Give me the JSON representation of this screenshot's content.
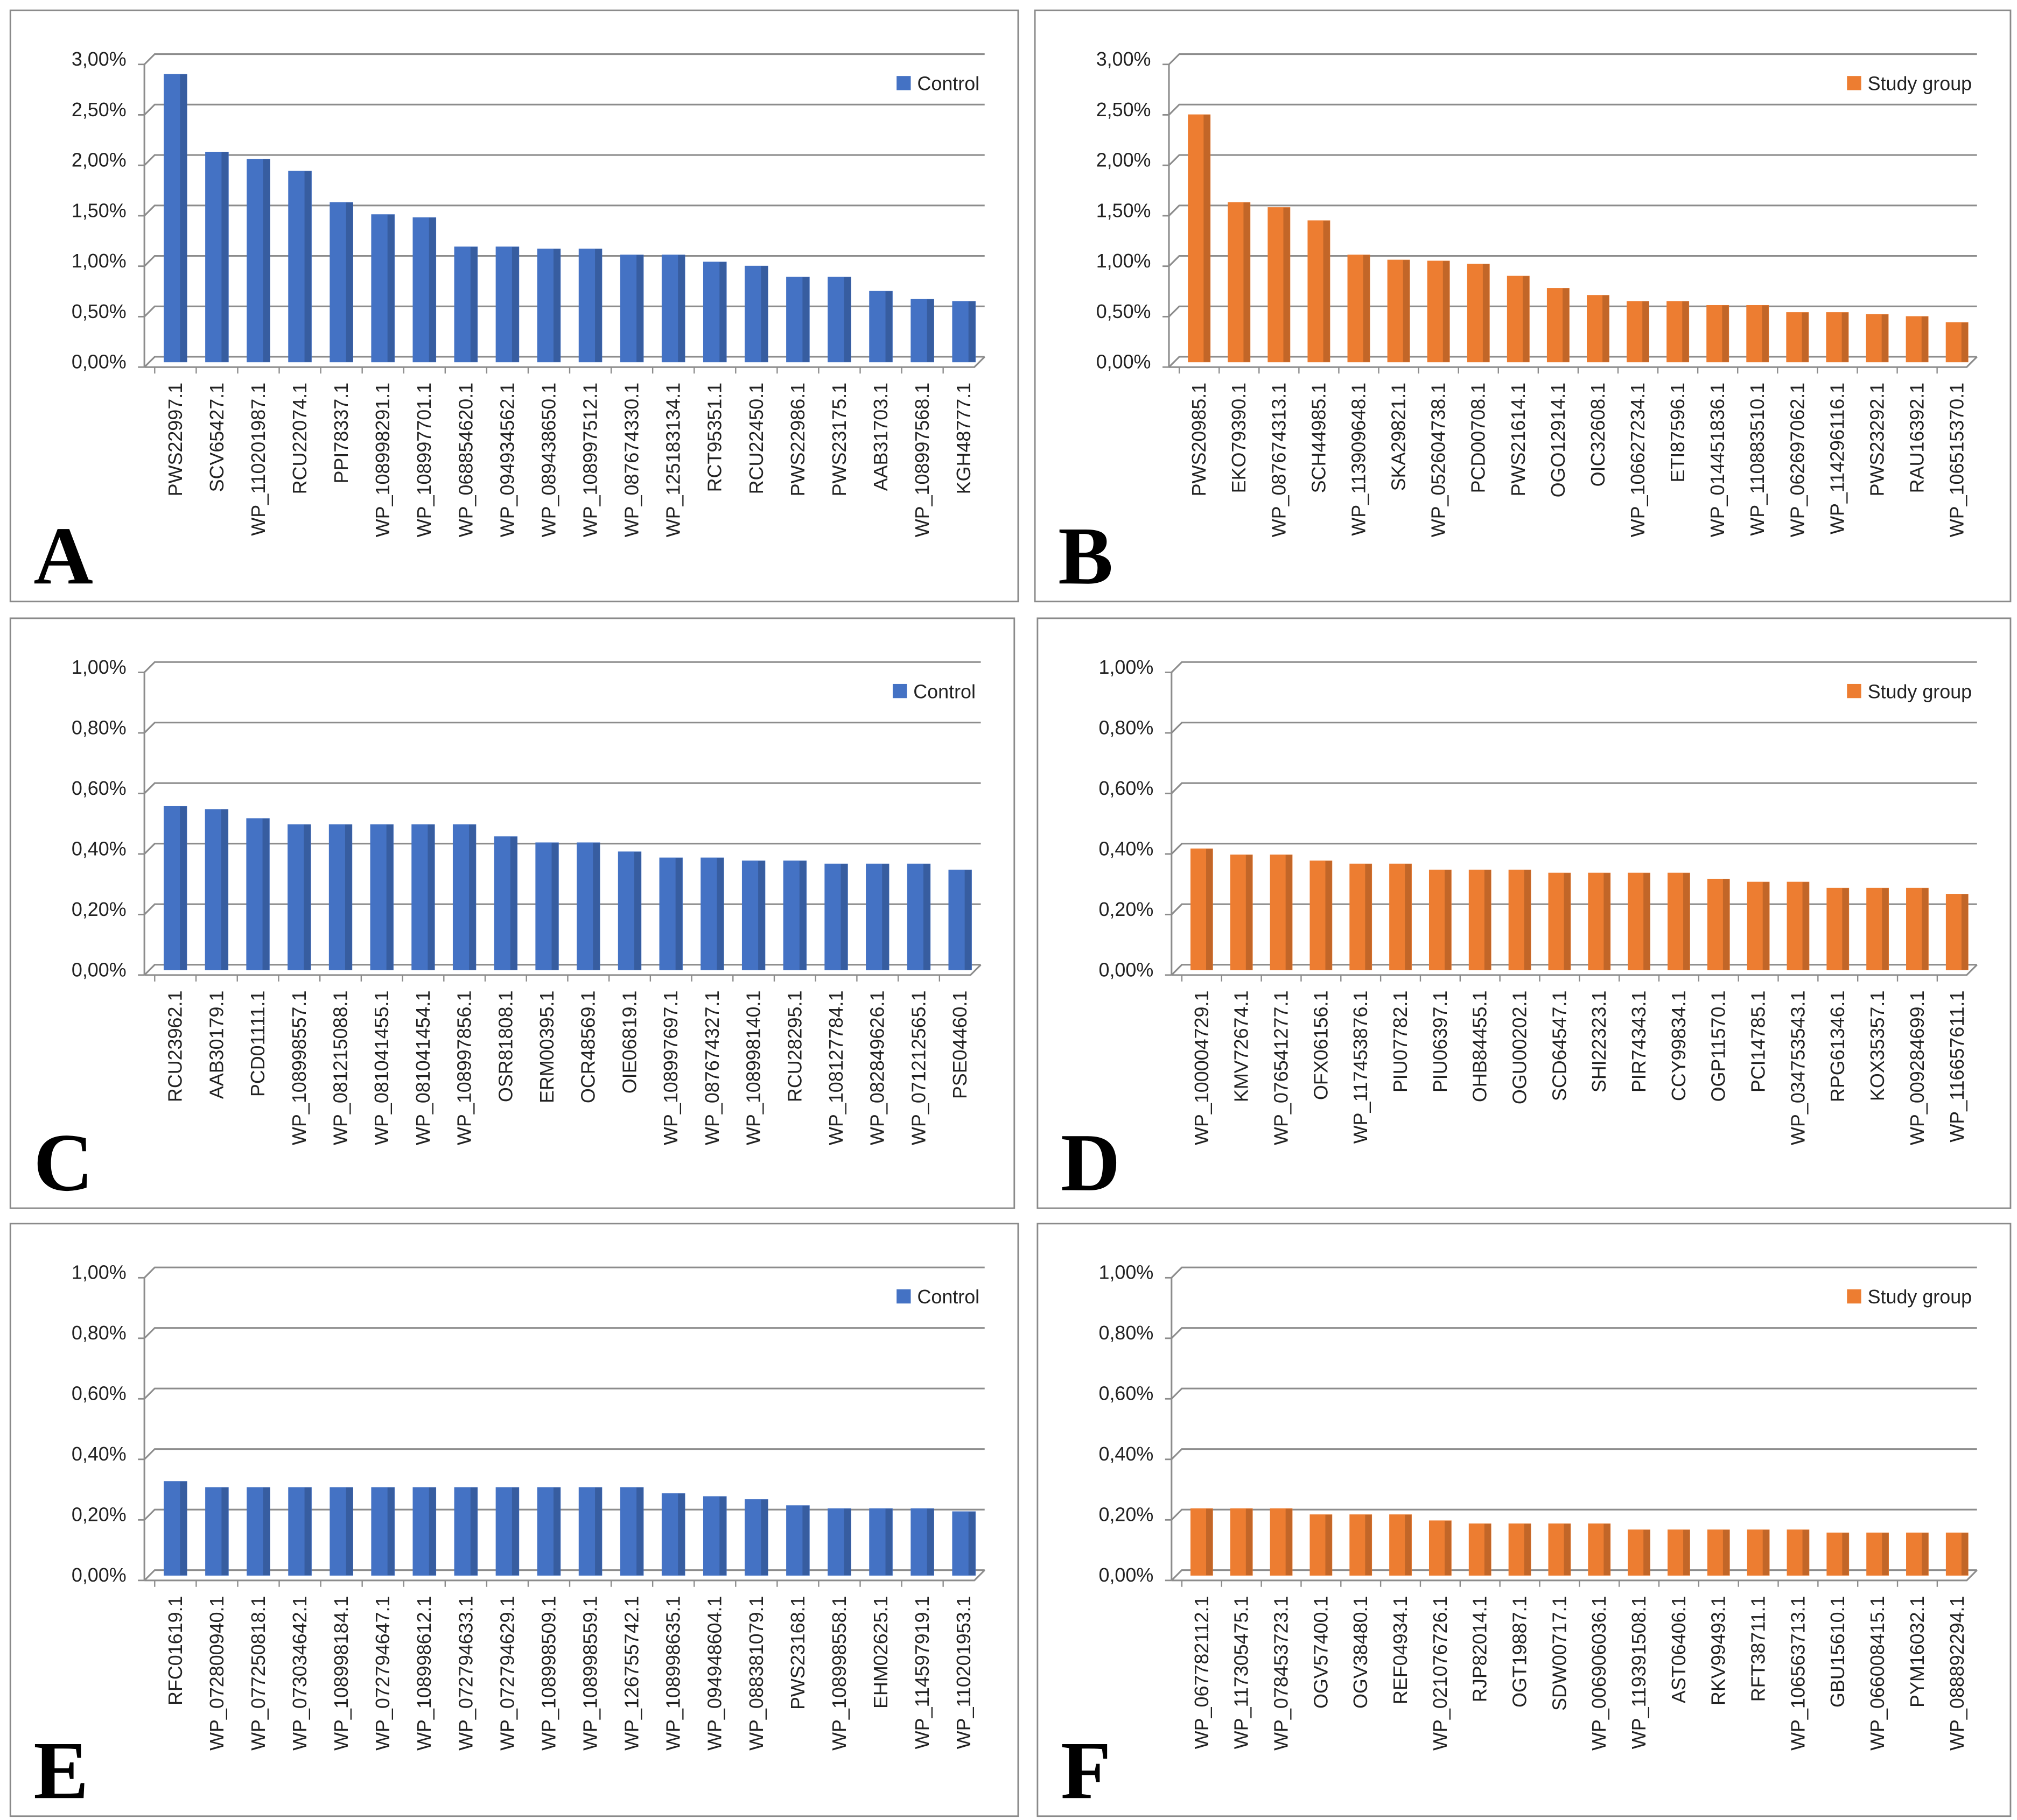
{
  "chart_data": [
    {
      "type": "bar",
      "label": "A",
      "legend": "upper right",
      "grid": true,
      "categories": [
        "PWS22997.1",
        "SCV65427.1",
        "WP_110201987.1",
        "RCU22074.1",
        "PPI78337.1",
        "WP_108998291.1",
        "WP_108997701.1",
        "WP_068854620.1",
        "WP_094934562.1",
        "WP_089438650.1",
        "WP_108997512.1",
        "WP_087674330.1",
        "WP_125183134.1",
        "RCT95351.1",
        "RCU22450.1",
        "PWS22986.1",
        "PWS23175.1",
        "AAB31703.1",
        "WP_108997568.1",
        "KGH48777.1"
      ],
      "series": [
        {
          "name": "Control",
          "color": "#4472c4",
          "values": [
            2.85,
            2.08,
            2.01,
            1.89,
            1.58,
            1.46,
            1.43,
            1.14,
            1.14,
            1.12,
            1.12,
            1.06,
            1.06,
            0.99,
            0.95,
            0.84,
            0.84,
            0.7,
            0.62,
            0.6
          ]
        }
      ],
      "ylim": [
        0,
        3
      ],
      "yticks": [
        {
          "value": 0,
          "label": "0,00%"
        },
        {
          "value": 0.5,
          "label": "0,50%"
        },
        {
          "value": 1,
          "label": "1,00%"
        },
        {
          "value": 1.5,
          "label": "1,50%"
        },
        {
          "value": 2,
          "label": "2,00%"
        },
        {
          "value": 2.5,
          "label": "2,50%"
        },
        {
          "value": 3,
          "label": "3,00%"
        }
      ]
    },
    {
      "type": "bar",
      "label": "B",
      "legend": "upper right",
      "grid": true,
      "categories": [
        "PWS20985.1",
        "EKO79390.1",
        "WP_087674313.1",
        "SCH44985.1",
        "WP_113909648.1",
        "SKA29821.1",
        "WP_052604738.1",
        "PCD00708.1",
        "PWS21614.1",
        "OGO12914.1",
        "OIC32608.1",
        "WP_106627234.1",
        "ETI87596.1",
        "WP_014451836.1",
        "WP_110883510.1",
        "WP_062697062.1",
        "WP_114296116.1",
        "PWS23292.1",
        "RAU16392.1",
        "WP_106515370.1"
      ],
      "series": [
        {
          "name": "Study group",
          "color": "#ed7d31",
          "values": [
            2.45,
            1.58,
            1.53,
            1.4,
            1.06,
            1.01,
            1.0,
            0.97,
            0.85,
            0.73,
            0.66,
            0.6,
            0.6,
            0.56,
            0.56,
            0.49,
            0.49,
            0.47,
            0.45,
            0.39
          ]
        }
      ],
      "ylim": [
        0,
        3
      ],
      "yticks": [
        {
          "value": 0,
          "label": "0,00%"
        },
        {
          "value": 0.5,
          "label": "0,50%"
        },
        {
          "value": 1,
          "label": "1,00%"
        },
        {
          "value": 1.5,
          "label": "1,50%"
        },
        {
          "value": 2,
          "label": "2,00%"
        },
        {
          "value": 2.5,
          "label": "2,50%"
        },
        {
          "value": 3,
          "label": "3,00%"
        }
      ]
    },
    {
      "type": "bar",
      "label": "C",
      "legend": "upper right",
      "grid": true,
      "categories": [
        "RCU23962.1",
        "AAB30179.1",
        "PCD01111.1",
        "WP_108998557.1",
        "WP_081215088.1",
        "WP_081041455.1",
        "WP_081041454.1",
        "WP_108997856.1",
        "OSR81808.1",
        "ERM00395.1",
        "OCR48569.1",
        "OIE06819.1",
        "WP_108997697.1",
        "WP_087674327.1",
        "WP_108998140.1",
        "RCU28295.1",
        "WP_108127784.1",
        "WP_082849626.1",
        "WP_071212565.1",
        "PSE04460.1"
      ],
      "series": [
        {
          "name": "Control",
          "color": "#4472c4",
          "values": [
            0.54,
            0.53,
            0.5,
            0.48,
            0.48,
            0.48,
            0.48,
            0.48,
            0.44,
            0.42,
            0.42,
            0.39,
            0.37,
            0.37,
            0.36,
            0.36,
            0.35,
            0.35,
            0.35,
            0.33
          ]
        }
      ],
      "ylim": [
        0,
        1
      ],
      "yticks": [
        {
          "value": 0,
          "label": "0,00%"
        },
        {
          "value": 0.2,
          "label": "0,20%"
        },
        {
          "value": 0.4,
          "label": "0,40%"
        },
        {
          "value": 0.6,
          "label": "0,60%"
        },
        {
          "value": 0.8,
          "label": "0,80%"
        },
        {
          "value": 1,
          "label": "1,00%"
        }
      ]
    },
    {
      "type": "bar",
      "label": "D",
      "legend": "upper right",
      "grid": true,
      "categories": [
        "WP_100004729.1",
        "KMV72674.1",
        "WP_076541277.1",
        "OFX06156.1",
        "WP_117453876.1",
        "PIU07782.1",
        "PIU06397.1",
        "OHB84455.1",
        "OGU00202.1",
        "SCD64547.1",
        "SHI22323.1",
        "PIR74343.1",
        "CCY99834.1",
        "OGP11570.1",
        "PCI14785.1",
        "WP_034753543.1",
        "RPG61346.1",
        "KOX35357.1",
        "WP_009284699.1",
        "WP_116657611.1"
      ],
      "series": [
        {
          "name": "Study group",
          "color": "#ed7d31",
          "values": [
            0.4,
            0.38,
            0.38,
            0.36,
            0.35,
            0.35,
            0.33,
            0.33,
            0.33,
            0.32,
            0.32,
            0.32,
            0.32,
            0.3,
            0.29,
            0.29,
            0.27,
            0.27,
            0.27,
            0.25
          ]
        }
      ],
      "ylim": [
        0,
        1
      ],
      "yticks": [
        {
          "value": 0,
          "label": "0,00%"
        },
        {
          "value": 0.2,
          "label": "0,20%"
        },
        {
          "value": 0.4,
          "label": "0,40%"
        },
        {
          "value": 0.6,
          "label": "0,60%"
        },
        {
          "value": 0.8,
          "label": "0,80%"
        },
        {
          "value": 1,
          "label": "1,00%"
        }
      ]
    },
    {
      "type": "bar",
      "label": "E",
      "legend": "upper right",
      "grid": true,
      "categories": [
        "RFC01619.1",
        "WP_072800940.1",
        "WP_077250818.1",
        "WP_073034642.1",
        "WP_108998184.1",
        "WP_072794647.1",
        "WP_108998612.1",
        "WP_072794633.1",
        "WP_072794629.1",
        "WP_108998509.1",
        "WP_108998559.1",
        "WP_126755742.1",
        "WP_108998635.1",
        "WP_094948604.1",
        "WP_088381079.1",
        "PWS23168.1",
        "WP_108998558.1",
        "EHM02625.1",
        "WP_114597919.1",
        "WP_110201953.1"
      ],
      "series": [
        {
          "name": "Control",
          "color": "#4472c4",
          "values": [
            0.31,
            0.29,
            0.29,
            0.29,
            0.29,
            0.29,
            0.29,
            0.29,
            0.29,
            0.29,
            0.29,
            0.29,
            0.27,
            0.26,
            0.25,
            0.23,
            0.22,
            0.22,
            0.22,
            0.21
          ]
        }
      ],
      "ylim": [
        0,
        1
      ],
      "yticks": [
        {
          "value": 0,
          "label": "0,00%"
        },
        {
          "value": 0.2,
          "label": "0,20%"
        },
        {
          "value": 0.4,
          "label": "0,40%"
        },
        {
          "value": 0.6,
          "label": "0,60%"
        },
        {
          "value": 0.8,
          "label": "0,80%"
        },
        {
          "value": 1,
          "label": "1,00%"
        }
      ]
    },
    {
      "type": "bar",
      "label": "F",
      "legend": "upper right",
      "grid": true,
      "categories": [
        "WP_067782112.1",
        "WP_117305475.1",
        "WP_078453723.1",
        "OGV57400.1",
        "OGV38480.1",
        "REF04934.1",
        "WP_021076726.1",
        "RJP82014.1",
        "OGT19887.1",
        "SDW00717.1",
        "WP_006906036.1",
        "WP_119391508.1",
        "AST06406.1",
        "RKV99493.1",
        "RFT38711.1",
        "WP_106563713.1",
        "GBU15610.1",
        "WP_066008415.1",
        "PYM16032.1",
        "WP_088892294.1"
      ],
      "series": [
        {
          "name": "Study group",
          "color": "#ed7d31",
          "values": [
            0.22,
            0.22,
            0.22,
            0.2,
            0.2,
            0.2,
            0.18,
            0.17,
            0.17,
            0.17,
            0.17,
            0.15,
            0.15,
            0.15,
            0.15,
            0.15,
            0.14,
            0.14,
            0.14,
            0.14
          ]
        }
      ],
      "ylim": [
        0,
        1
      ],
      "yticks": [
        {
          "value": 0,
          "label": "0,00%"
        },
        {
          "value": 0.2,
          "label": "0,20%"
        },
        {
          "value": 0.4,
          "label": "0,40%"
        },
        {
          "value": 0.6,
          "label": "0,60%"
        },
        {
          "value": 0.8,
          "label": "0,80%"
        },
        {
          "value": 1,
          "label": "1,00%"
        }
      ]
    }
  ]
}
